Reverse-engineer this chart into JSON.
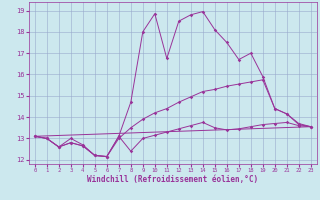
{
  "xlabel": "Windchill (Refroidissement éolien,°C)",
  "background_color": "#cce8ee",
  "line_color": "#993399",
  "xlim": [
    -0.5,
    23.5
  ],
  "ylim": [
    11.8,
    19.4
  ],
  "yticks": [
    12,
    13,
    14,
    15,
    16,
    17,
    18,
    19
  ],
  "xticks": [
    0,
    1,
    2,
    3,
    4,
    5,
    6,
    7,
    8,
    9,
    10,
    11,
    12,
    13,
    14,
    15,
    16,
    17,
    18,
    19,
    20,
    21,
    22,
    23
  ],
  "grid_color": "#99aacc",
  "line1_x": [
    0,
    1,
    2,
    3,
    4,
    5,
    6,
    7,
    8,
    9,
    10,
    11,
    12,
    13,
    14,
    15,
    16,
    17,
    18,
    19,
    20,
    21,
    22,
    23
  ],
  "line1_y": [
    13.1,
    13.0,
    12.6,
    13.0,
    12.7,
    12.2,
    12.15,
    13.1,
    12.4,
    13.0,
    13.15,
    13.3,
    13.45,
    13.6,
    13.75,
    13.5,
    13.4,
    13.45,
    13.55,
    13.65,
    13.7,
    13.75,
    13.6,
    13.55
  ],
  "line2_x": [
    0,
    1,
    2,
    3,
    4,
    5,
    6,
    7,
    8,
    9,
    10,
    11,
    12,
    13,
    14,
    15,
    16,
    17,
    18,
    19,
    20,
    21,
    22,
    23
  ],
  "line2_y": [
    13.1,
    13.0,
    12.6,
    12.8,
    12.65,
    12.2,
    12.15,
    13.1,
    14.7,
    18.0,
    18.85,
    16.75,
    18.5,
    18.8,
    18.95,
    18.1,
    17.5,
    16.7,
    17.0,
    15.9,
    14.4,
    14.15,
    13.65,
    13.55
  ],
  "line3_x": [
    0,
    1,
    2,
    3,
    4,
    5,
    6,
    7,
    8,
    9,
    10,
    11,
    12,
    13,
    14,
    15,
    16,
    17,
    18,
    19,
    20,
    21,
    22,
    23
  ],
  "line3_y": [
    13.1,
    13.0,
    12.6,
    12.8,
    12.65,
    12.2,
    12.15,
    13.0,
    13.5,
    13.9,
    14.2,
    14.4,
    14.7,
    14.95,
    15.2,
    15.3,
    15.45,
    15.55,
    15.65,
    15.75,
    14.4,
    14.15,
    13.7,
    13.55
  ],
  "line4_x": [
    0,
    23
  ],
  "line4_y": [
    13.1,
    13.55
  ],
  "markersize": 1.8,
  "linewidth": 0.7
}
